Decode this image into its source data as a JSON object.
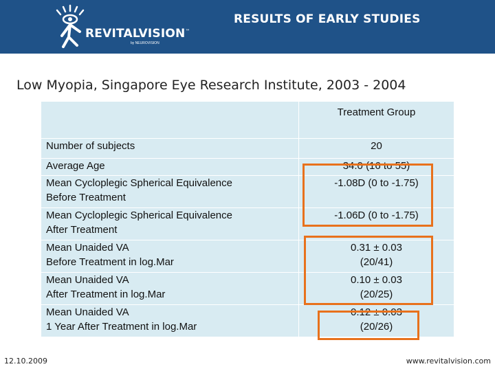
{
  "header": {
    "brand": "REVITALVISION",
    "brand_tm": "™",
    "tagline": "by NEUROVISION",
    "title": "RESULTS OF EARLY STUDIES",
    "background_color": "#1f5288"
  },
  "subtitle": "Low Myopia, Singapore Eye Research Institute, 2003 - 2004",
  "table": {
    "column_header": "Treatment Group",
    "rows": [
      {
        "label": [
          "Number of subjects"
        ],
        "value": [
          "20"
        ]
      },
      {
        "label": [
          "Average Age"
        ],
        "value": [
          "34.0 (16 to 55)"
        ]
      },
      {
        "label": [
          "Mean Cycloplegic Spherical Equivalence",
          "Before Treatment"
        ],
        "value": [
          "-1.08D (0 to -1.75)"
        ]
      },
      {
        "label": [
          "Mean Cycloplegic Spherical Equivalence",
          "After Treatment"
        ],
        "value": [
          "-1.06D (0 to -1.75)"
        ]
      },
      {
        "label": [
          "Mean Unaided VA",
          "Before Treatment in log.Mar"
        ],
        "value": [
          "0.31 ± 0.03",
          "(20/41)"
        ]
      },
      {
        "label": [
          "Mean Unaided VA",
          "After Treatment in log.Mar"
        ],
        "value": [
          "0.10 ± 0.03",
          "(20/25)"
        ]
      },
      {
        "label": [
          "Mean Unaided VA",
          "1 Year After Treatment in log.Mar"
        ],
        "value": [
          "0.12 ± 0.03",
          "(20/26)"
        ]
      }
    ],
    "cell_color": "#d8ebf2",
    "highlight_color": "#e8711c"
  },
  "footer": {
    "date": "12.10.2009",
    "url": "www.revitalvision.com"
  }
}
